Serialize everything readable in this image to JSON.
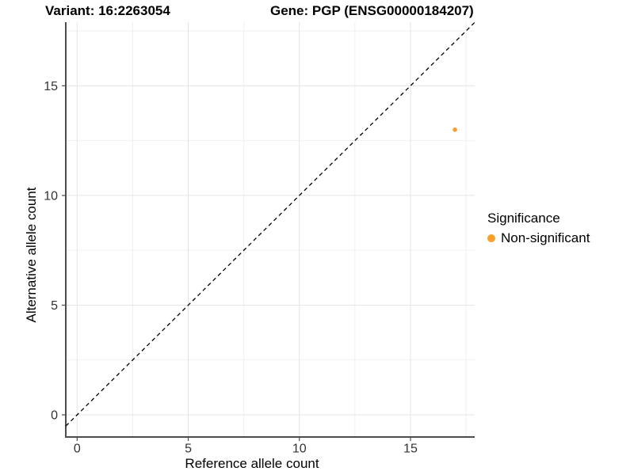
{
  "titles": {
    "variant": "Variant: 16:2263054",
    "gene": "Gene: PGP (ENSG00000184207)"
  },
  "chart_data": {
    "type": "scatter",
    "title": "Variant: 16:2263054   Gene: PGP (ENSG00000184207)",
    "xlabel": "Reference allele count",
    "ylabel": "Alternative allele count",
    "xlim": [
      -0.51,
      17.89
    ],
    "ylim": [
      -1.01,
      17.9
    ],
    "x_major_ticks": [
      0,
      5,
      10,
      15
    ],
    "y_major_ticks": [
      0,
      5,
      10,
      15
    ],
    "x_minor_ticks": [
      2.5,
      7.5,
      12.5,
      17.5
    ],
    "y_minor_ticks": [
      2.5,
      7.5,
      12.5,
      17.5
    ],
    "grid": "major and minor gridlines on, white panel background",
    "reference_line": {
      "type": "identity y=x",
      "style": "dashed",
      "color": "#000000"
    },
    "series": [
      {
        "name": "Non-significant",
        "color": "#F8A029",
        "points": [
          {
            "x": 17,
            "y": 13
          }
        ]
      }
    ],
    "legend": {
      "title": "Significance",
      "position": "right",
      "items": [
        {
          "label": "Non-significant",
          "color": "#F8A029"
        }
      ]
    }
  },
  "style_colors": {
    "axis_line": "#4D4D4D",
    "tick_mark": "#4D4D4D",
    "tick_label": "#333333",
    "grid_major": "#E4E4E4",
    "grid_minor": "#EFEFEF",
    "point_orange": "#F8A029",
    "background": "#FFFFFF"
  }
}
